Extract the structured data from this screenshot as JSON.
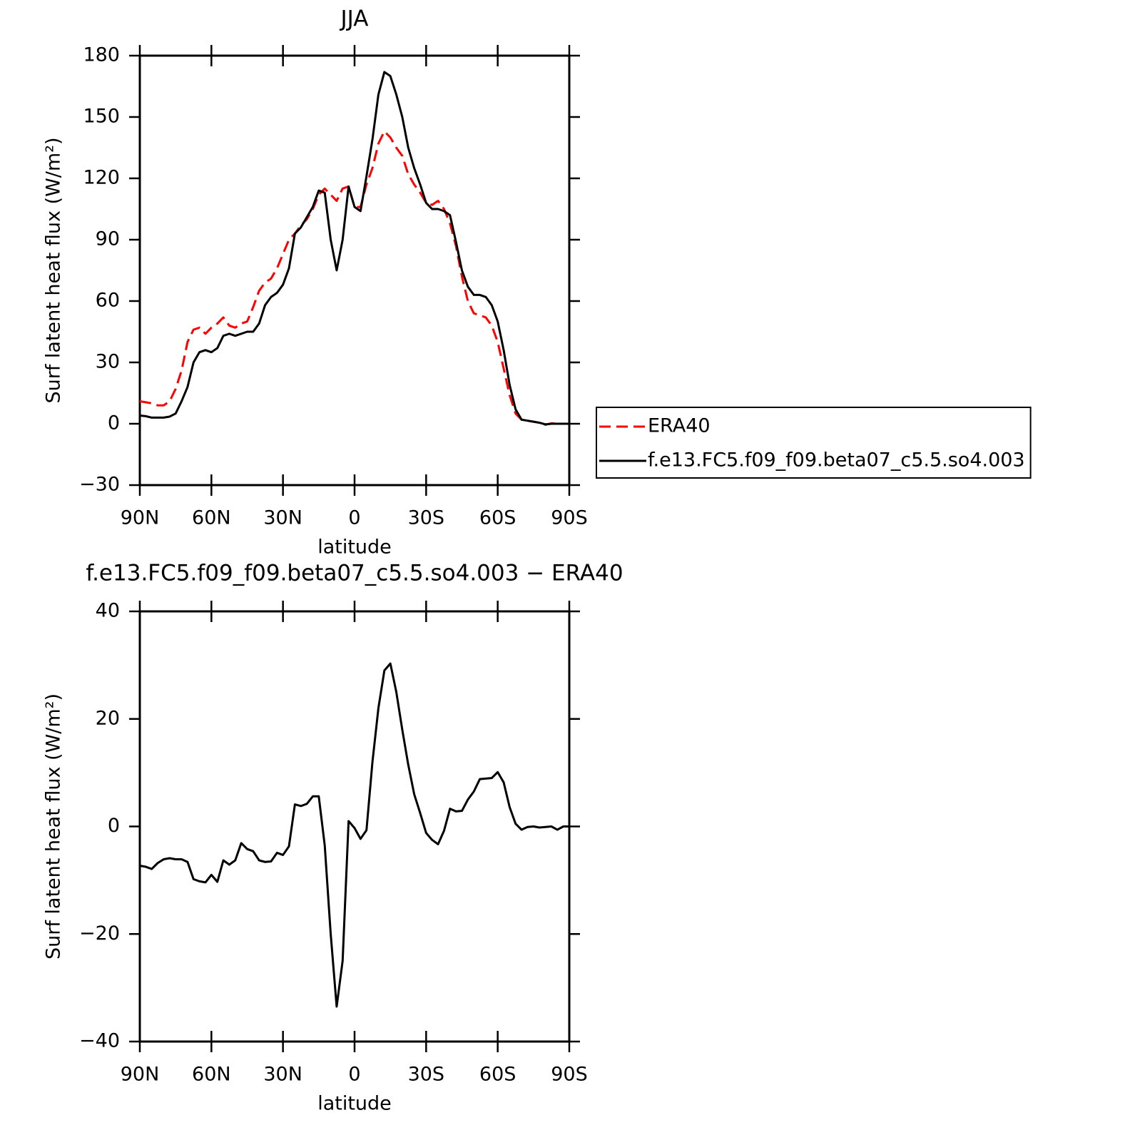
{
  "chart_data": [
    {
      "type": "line",
      "title": "JJA",
      "xlabel": "latitude",
      "ylabel": "Surf latent heat flux (W/m²)",
      "x": [
        90,
        87.5,
        85,
        82.5,
        80,
        77.5,
        75,
        72.5,
        70,
        67.5,
        65,
        62.5,
        60,
        57.5,
        55,
        52.5,
        50,
        47.5,
        45,
        42.5,
        40,
        37.5,
        35,
        32.5,
        30,
        27.5,
        25,
        22.5,
        20,
        17.5,
        15,
        12.5,
        10,
        7.5,
        5,
        2.5,
        0,
        -2.5,
        -5,
        -7.5,
        -10,
        -12.5,
        -15,
        -17.5,
        -20,
        -22.5,
        -25,
        -27.5,
        -30,
        -32.5,
        -35,
        -37.5,
        -40,
        -42.5,
        -45,
        -47.5,
        -50,
        -52.5,
        -55,
        -57.5,
        -60,
        -62.5,
        -65,
        -67.5,
        -70,
        -72.5,
        -75,
        -77.5,
        -80,
        -82.5,
        -85,
        -87.5,
        -90
      ],
      "xlim": [
        90,
        -90
      ],
      "xticks": [
        {
          "value": 90,
          "label": "90N"
        },
        {
          "value": 60,
          "label": "60N"
        },
        {
          "value": 30,
          "label": "30N"
        },
        0,
        {
          "value": -30,
          "label": "30S"
        },
        {
          "value": -60,
          "label": "60S"
        },
        {
          "value": -90,
          "label": "90S"
        }
      ],
      "ylim": [
        -30,
        180
      ],
      "yticks": [
        {
          "value": -30,
          "label": "−30"
        },
        0,
        30,
        60,
        90,
        120,
        150,
        180
      ],
      "legend": "right",
      "series": [
        {
          "name": "ERA40",
          "color": "#ff0000",
          "dashed": true,
          "values": [
            11,
            10.5,
            10,
            9,
            9,
            11,
            17,
            26,
            40,
            46,
            47,
            44,
            47,
            49,
            52,
            48,
            47,
            49,
            50,
            57,
            65,
            69,
            71,
            76,
            83,
            90,
            93,
            97,
            100,
            105,
            112,
            115,
            112,
            109,
            115,
            116,
            106,
            106,
            117,
            125,
            137,
            143,
            140,
            135,
            131,
            122,
            117,
            113,
            108,
            107,
            109,
            105,
            98,
            87,
            72,
            60,
            54,
            53,
            52,
            48,
            40,
            27,
            14,
            5,
            2,
            1.5,
            1,
            0.5,
            -0.5,
            0.2,
            0,
            0,
            0
          ]
        },
        {
          "name": "f.e13.FC5.f09_f09.beta07_c5.5.so4.003",
          "color": "#000000",
          "dashed": false,
          "values": [
            4,
            3.7,
            3,
            3,
            3,
            3.5,
            5,
            11,
            18,
            30,
            35,
            36,
            35,
            37,
            43,
            44,
            43,
            44,
            45,
            45,
            49,
            58,
            62,
            64,
            68,
            76,
            93,
            96,
            101,
            106,
            114,
            113,
            90,
            75,
            90,
            116,
            106,
            104,
            121,
            139,
            161,
            172,
            170,
            161,
            150,
            135,
            125,
            117,
            108,
            105,
            105,
            104,
            102,
            89,
            75,
            67,
            63,
            63,
            62,
            58,
            50,
            36,
            19,
            7,
            2,
            1.5,
            1,
            0.5,
            -0.3,
            0,
            0,
            0,
            0
          ]
        }
      ]
    },
    {
      "type": "line",
      "title": "f.e13.FC5.f09_f09.beta07_c5.5.so4.003 − ERA40",
      "xlabel": "latitude",
      "ylabel": "Surf latent heat flux (W/m²)",
      "x": [
        90,
        87.5,
        85,
        82.5,
        80,
        77.5,
        75,
        72.5,
        70,
        67.5,
        65,
        62.5,
        60,
        57.5,
        55,
        52.5,
        50,
        47.5,
        45,
        42.5,
        40,
        37.5,
        35,
        32.5,
        30,
        27.5,
        25,
        22.5,
        20,
        17.5,
        15,
        12.5,
        10,
        7.5,
        5,
        2.5,
        0,
        -2.5,
        -5,
        -7.5,
        -10,
        -12.5,
        -15,
        -17.5,
        -20,
        -22.5,
        -25,
        -27.5,
        -30,
        -32.5,
        -35,
        -37.5,
        -40,
        -42.5,
        -45,
        -47.5,
        -50,
        -52.5,
        -55,
        -57.5,
        -60,
        -62.5,
        -65,
        -67.5,
        -70,
        -72.5,
        -75,
        -77.5,
        -80,
        -82.5,
        -85,
        -87.5,
        -90
      ],
      "xlim": [
        90,
        -90
      ],
      "xticks": [
        {
          "value": 90,
          "label": "90N"
        },
        {
          "value": 60,
          "label": "60N"
        },
        {
          "value": 30,
          "label": "30N"
        },
        0,
        {
          "value": -30,
          "label": "30S"
        },
        {
          "value": -60,
          "label": "60S"
        },
        {
          "value": -90,
          "label": "90S"
        }
      ],
      "ylim": [
        -40,
        40
      ],
      "yticks": [
        {
          "value": -40,
          "label": "−40"
        },
        {
          "value": -20,
          "label": "−20"
        },
        0,
        20,
        40
      ],
      "series": [
        {
          "color": "#000000",
          "dashed": false,
          "values": [
            -7.3,
            -7.5,
            -7.9,
            -6.8,
            -6.1,
            -5.9,
            -6.1,
            -6.1,
            -6.6,
            -9.8,
            -10.2,
            -10.4,
            -9,
            -10.3,
            -6.3,
            -7.1,
            -6.3,
            -3.1,
            -4.2,
            -4.6,
            -6.3,
            -6.6,
            -6.5,
            -4.9,
            -5.3,
            -3.7,
            4.1,
            3.8,
            4.2,
            5.6,
            5.6,
            -3.5,
            -20,
            -33.5,
            -25,
            1,
            -0.3,
            -2.3,
            -0.7,
            12,
            22,
            29,
            30.3,
            25,
            18,
            11.5,
            6,
            2.5,
            -1.2,
            -2.5,
            -3.3,
            -0.8,
            3.3,
            2.8,
            2.9,
            5,
            6.5,
            8.8,
            8.9,
            9,
            10.1,
            8.2,
            3.6,
            0.5,
            -0.6,
            -0.1,
            0,
            -0.2,
            -0.1,
            0,
            -0.6,
            0,
            0
          ]
        }
      ]
    }
  ]
}
